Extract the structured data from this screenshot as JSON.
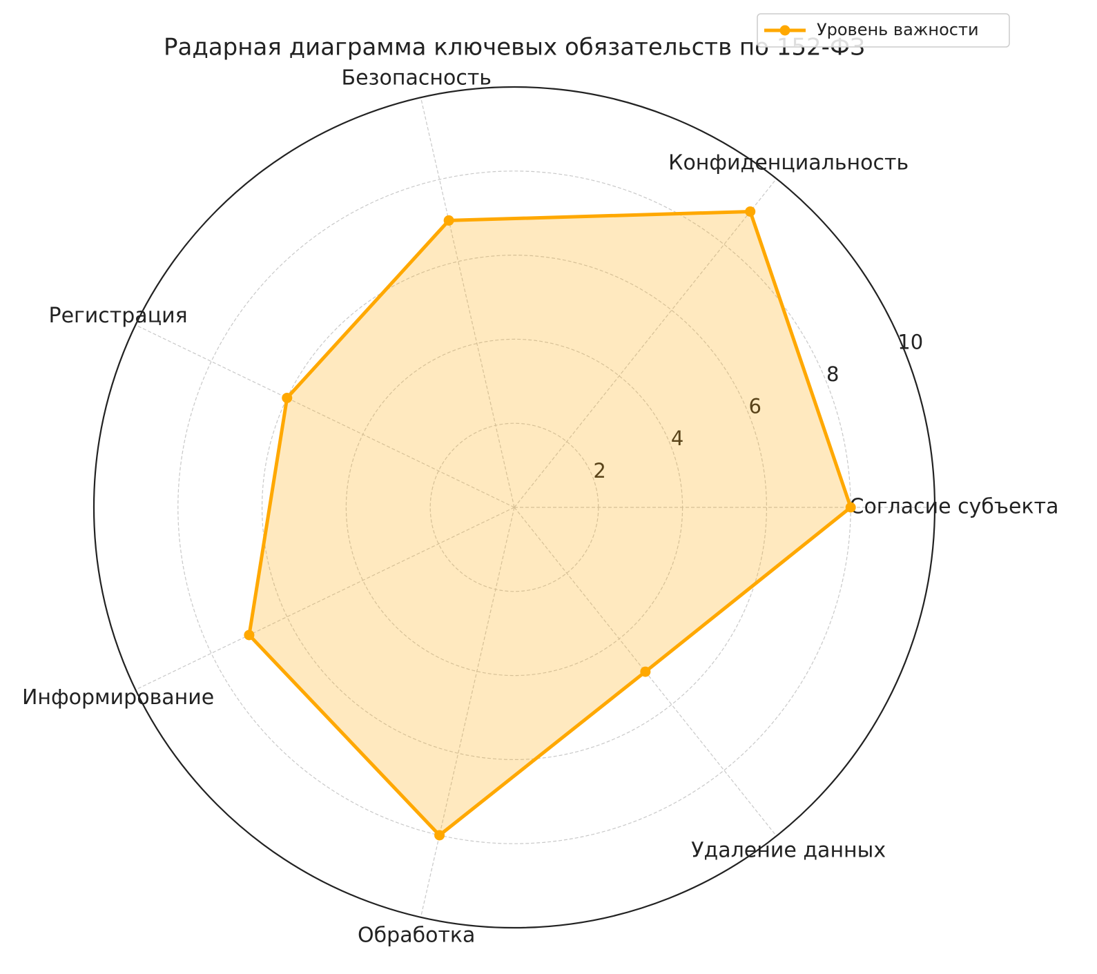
{
  "chart_data": {
    "type": "radar",
    "title": "Радарная диаграмма ключевых обязательств по 152-ФЗ",
    "categories": [
      "Согласие субъекта",
      "Конфиденциальность",
      "Безопасность",
      "Регистрация",
      "Информирование",
      "Обработка",
      "Удаление данных"
    ],
    "series": [
      {
        "name": "Уровень важности",
        "color": "#ffa800",
        "values": [
          8,
          9,
          7,
          6,
          7,
          8,
          5
        ]
      }
    ],
    "ylim": [
      0,
      10
    ],
    "yticks": [
      2,
      4,
      6,
      8,
      10
    ],
    "grid": true,
    "legend": "upper right"
  }
}
